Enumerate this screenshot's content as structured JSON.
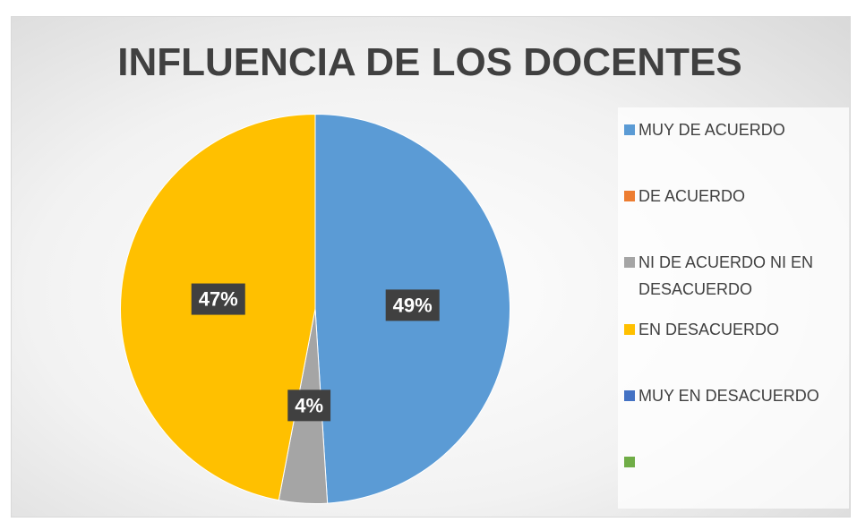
{
  "chart_data": {
    "type": "pie",
    "title": "INFLUENCIA DE LOS DOCENTES",
    "categories": [
      "MUY DE ACUERDO",
      "DE ACUERDO",
      "NI DE ACUERDO NI EN DESACUERDO",
      "EN DESACUERDO",
      "MUY EN DESACUERDO",
      null
    ],
    "values": [
      49,
      0,
      4,
      47,
      0,
      0
    ],
    "value_labels": [
      "49%",
      null,
      "4%",
      "47%",
      null,
      null
    ],
    "colors": [
      "#5b9bd5",
      "#ed7d31",
      "#a5a5a5",
      "#ffc000",
      "#4472c4",
      "#70ad47"
    ],
    "legend": "right"
  }
}
